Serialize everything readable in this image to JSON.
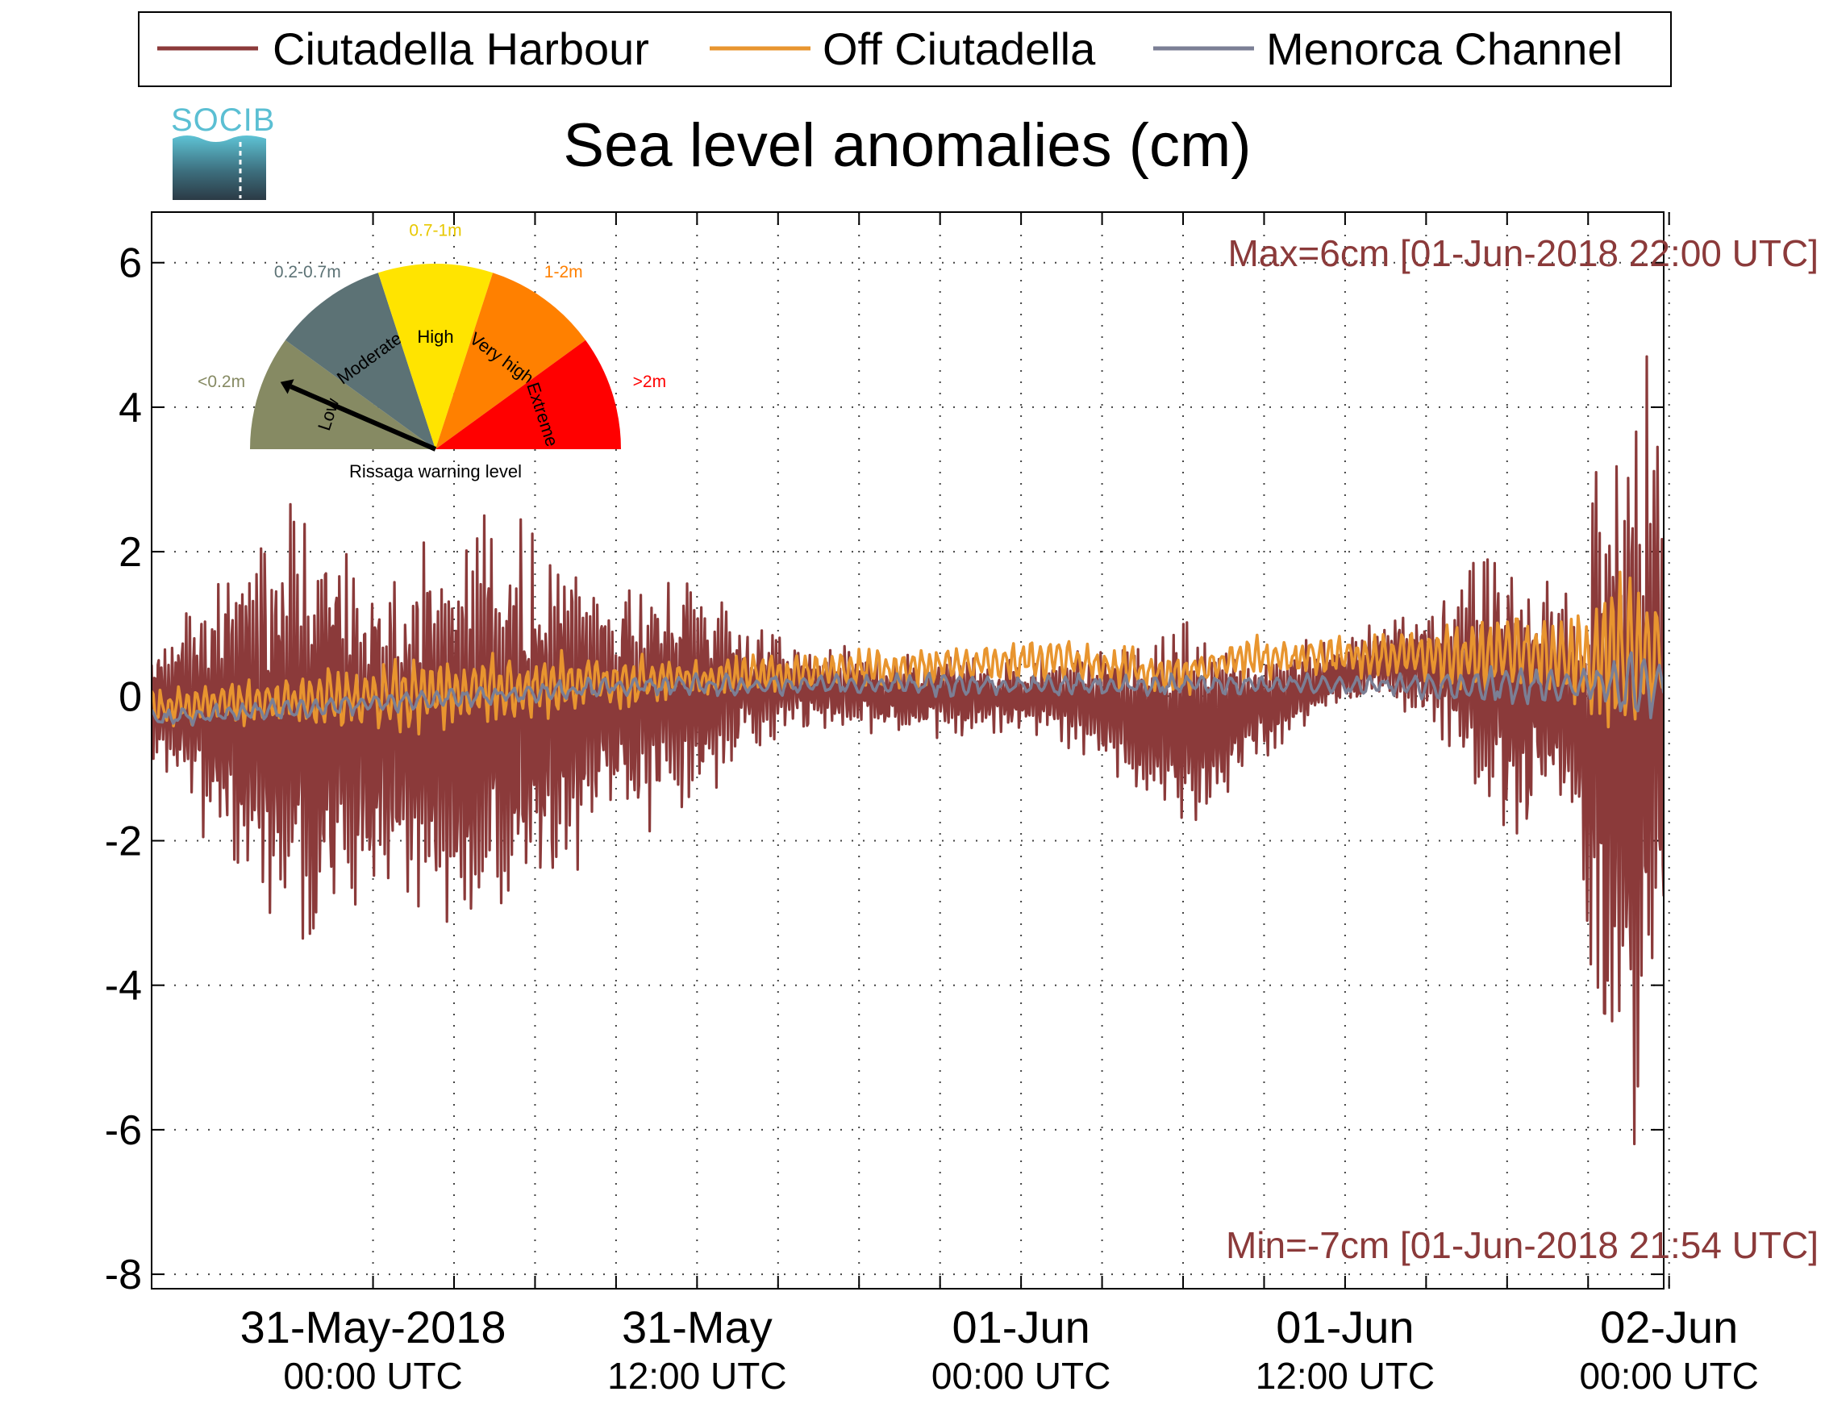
{
  "logo": {
    "text": "SOCIB"
  },
  "chart_data": {
    "type": "line",
    "title": "Sea level anomalies (cm)",
    "xlabel": "",
    "ylabel": "",
    "ylim": [
      -8.2,
      6.7
    ],
    "xlim_hours": [
      -8.2,
      47.8
    ],
    "yticks": [
      -8,
      -6,
      -4,
      -2,
      0,
      2,
      4,
      6
    ],
    "grid": true,
    "grid_style": "dotted",
    "legend_position": "top",
    "xticks": [
      {
        "date": "31-May-2018",
        "time": "00:00 UTC",
        "hours": 0
      },
      {
        "date": "31-May",
        "time": "12:00 UTC",
        "hours": 12
      },
      {
        "date": "01-Jun",
        "time": "00:00 UTC",
        "hours": 24
      },
      {
        "date": "01-Jun",
        "time": "12:00 UTC",
        "hours": 36
      },
      {
        "date": "02-Jun",
        "time": "00:00 UTC",
        "hours": 48
      }
    ],
    "minor_xticks_hours": [
      3,
      6,
      9,
      15,
      18,
      21,
      27,
      30,
      33,
      39,
      42,
      45
    ],
    "series": [
      {
        "name": "Ciutadella Harbour",
        "color": "#8b3a3a"
      },
      {
        "name": "Off Ciutadella",
        "color": "#e8952f"
      },
      {
        "name": "Menorca Channel",
        "color": "#7b7f95"
      }
    ],
    "annotations": {
      "max": "Max=6cm [01-Jun-2018 22:00 UTC]",
      "min": "Min=-7cm [01-Jun-2018 21:54 UTC]",
      "color": "#8b3a3a"
    }
  },
  "gauge": {
    "title": "Rissaga warning level",
    "segments": [
      {
        "name": "Low",
        "range": "<0.2m",
        "color": "#868a63",
        "range_color": "#868a63"
      },
      {
        "name": "Moderate",
        "range": "0.2-0.7m",
        "color": "#5c7275",
        "range_color": "#5c7275"
      },
      {
        "name": "High",
        "range": "0.7-1m",
        "color": "#ffe400",
        "range_color": "#e8c800"
      },
      {
        "name": "Very high",
        "range": "1-2m",
        "color": "#ff8000",
        "range_color": "#ff8000"
      },
      {
        "name": "Extreme",
        "range": ">2m",
        "color": "#ff0000",
        "range_color": "#ff0000"
      }
    ],
    "needle_level": 0.13
  }
}
